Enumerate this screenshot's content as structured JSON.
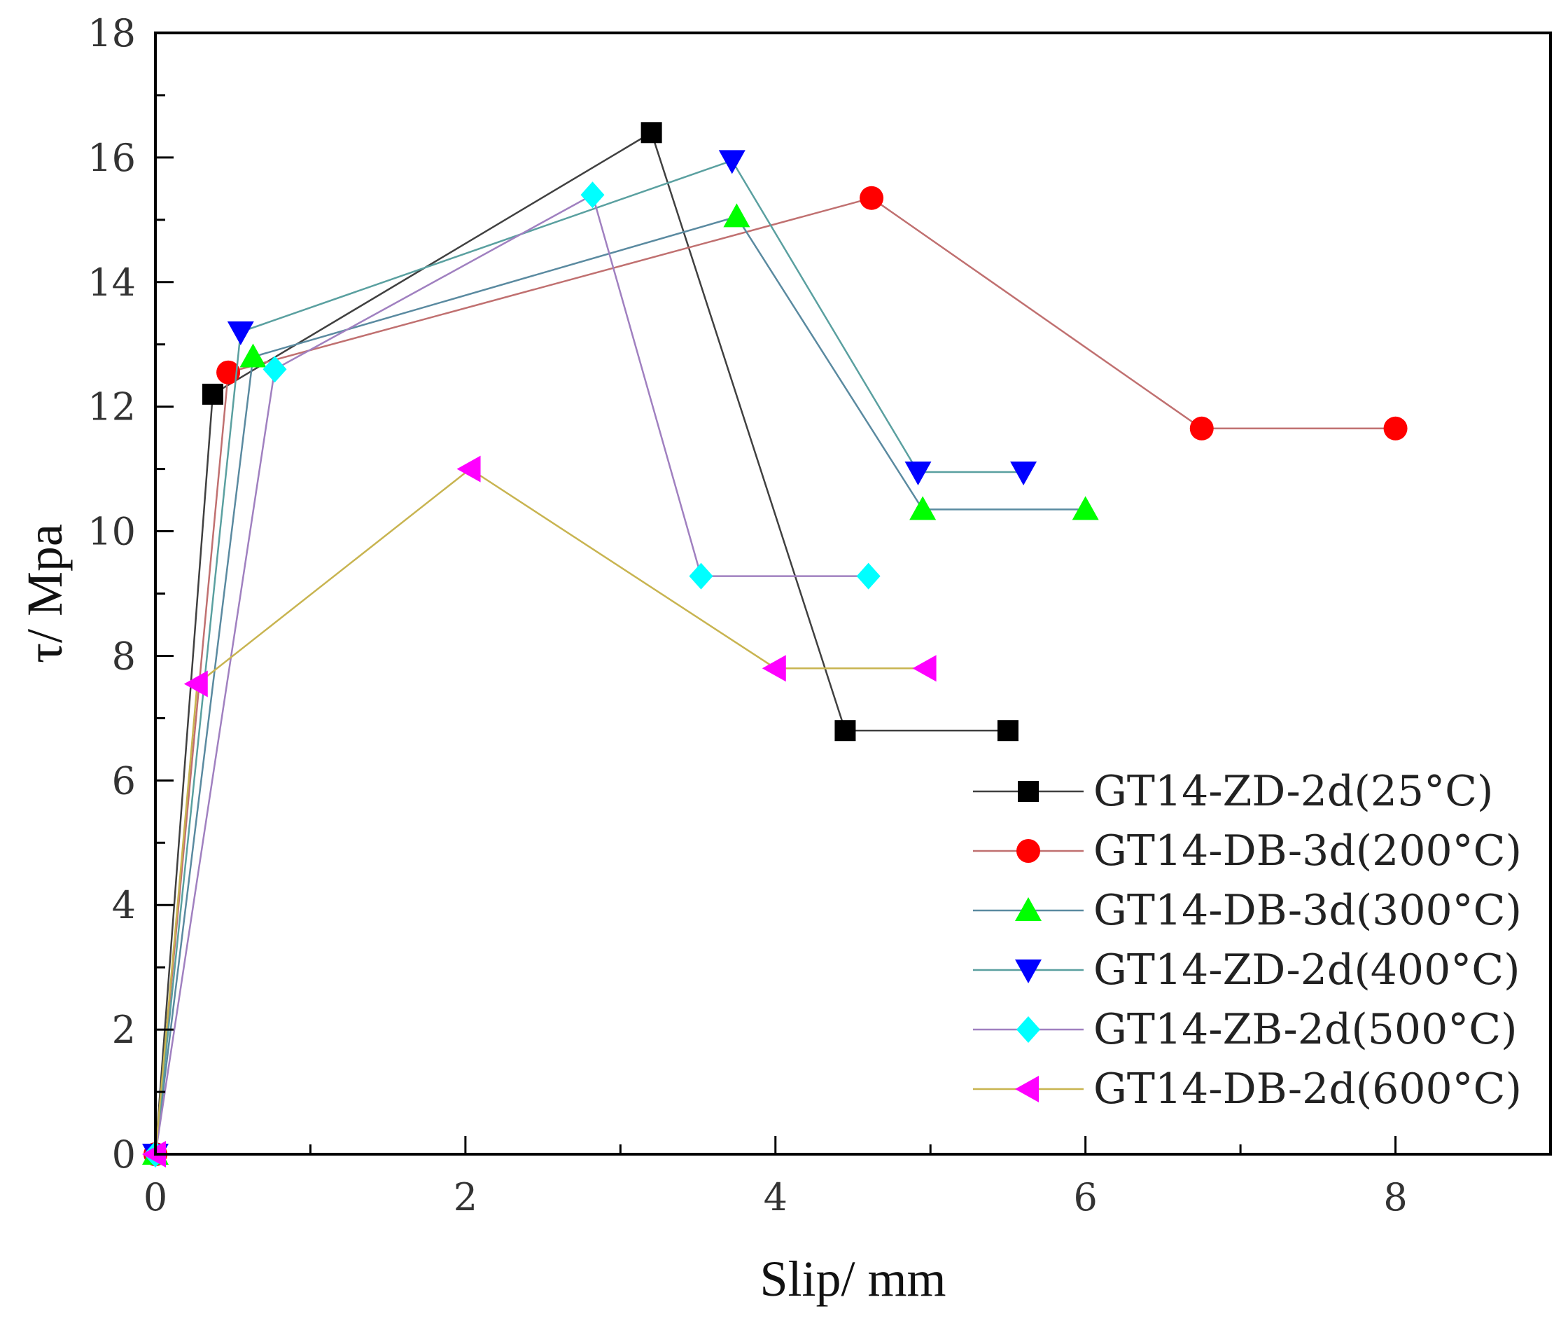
{
  "chart_data": {
    "type": "line",
    "title": "",
    "xlabel": "Slip/ mm",
    "ylabel": "τ/ Mpa",
    "xlim": [
      0,
      9
    ],
    "ylim": [
      0,
      18
    ],
    "xticks": [
      0,
      2,
      4,
      6,
      8
    ],
    "yticks": [
      0,
      2,
      4,
      6,
      8,
      10,
      12,
      14,
      16,
      18
    ],
    "grid": false,
    "legend_position": "bottom-right",
    "series": [
      {
        "name": "GT14-ZD-2d(25°C)",
        "marker": "square",
        "marker_color": "#000000",
        "line_color": "#404040",
        "x": [
          0,
          0.37,
          3.2,
          4.45,
          5.5
        ],
        "y": [
          0,
          12.2,
          16.4,
          6.8,
          6.8
        ]
      },
      {
        "name": "GT14-DB-3d(200°C)",
        "marker": "circle",
        "marker_color": "#ff0000",
        "line_color": "#c07070",
        "x": [
          0,
          0.47,
          4.62,
          6.75,
          8.0
        ],
        "y": [
          0,
          12.55,
          15.35,
          11.65,
          11.65
        ]
      },
      {
        "name": "GT14-DB-3d(300°C)",
        "marker": "triangle-up",
        "marker_color": "#00ff00",
        "line_color": "#5a8aa0",
        "x": [
          0,
          0.63,
          3.75,
          4.95,
          6.0
        ],
        "y": [
          0,
          12.8,
          15.05,
          10.35,
          10.35
        ]
      },
      {
        "name": "GT14-ZD-2d(400°C)",
        "marker": "triangle-down",
        "marker_color": "#0000ff",
        "line_color": "#5aa0a0",
        "x": [
          0,
          0.55,
          3.72,
          4.92,
          5.6
        ],
        "y": [
          0,
          13.2,
          15.95,
          10.95,
          10.95
        ]
      },
      {
        "name": "GT14-ZB-2d(500°C)",
        "marker": "diamond",
        "marker_color": "#00ffff",
        "line_color": "#a080c0",
        "x": [
          0,
          0.77,
          2.82,
          3.52,
          4.6
        ],
        "y": [
          0,
          12.6,
          15.4,
          9.28,
          9.28
        ]
      },
      {
        "name": "GT14-DB-2d(600°C)",
        "marker": "triangle-left",
        "marker_color": "#ff00ff",
        "line_color": "#c8b450",
        "x": [
          0,
          0.27,
          2.03,
          4.0,
          4.97
        ],
        "y": [
          0,
          7.55,
          11.0,
          7.8,
          7.8
        ]
      }
    ]
  }
}
